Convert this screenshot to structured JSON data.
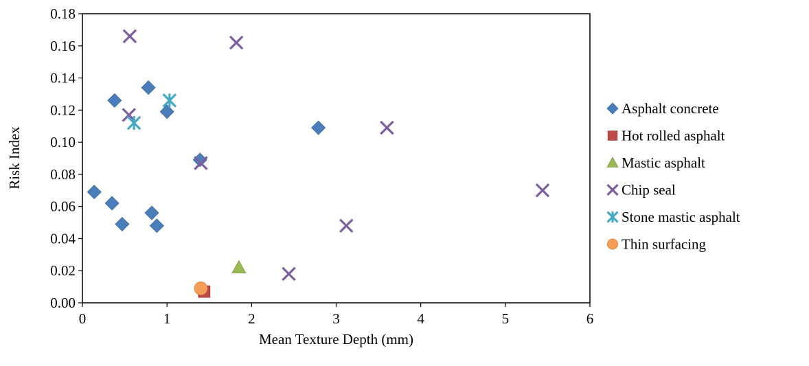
{
  "chart_data": {
    "type": "scatter",
    "title": "",
    "xlabel": "Mean Texture Depth (mm)",
    "ylabel": "Risk Index",
    "xlim": [
      0,
      6
    ],
    "ylim": [
      0,
      0.18
    ],
    "xticks": [
      0,
      1,
      2,
      3,
      4,
      5,
      6
    ],
    "xtick_labels": [
      "0",
      "1",
      "2",
      "3",
      "4",
      "5",
      "6"
    ],
    "yticks": [
      0,
      0.02,
      0.04,
      0.06,
      0.08,
      0.1,
      0.12,
      0.14,
      0.16,
      0.18
    ],
    "ytick_labels": [
      "0.00",
      "0.02",
      "0.04",
      "0.06",
      "0.08",
      "0.10",
      "0.12",
      "0.14",
      "0.16",
      "0.18"
    ],
    "grid": false,
    "legend_position": "right",
    "series": [
      {
        "name": "Asphalt concrete",
        "marker": "diamond",
        "color": "#4a7ebb",
        "points": [
          {
            "x": 0.14,
            "y": 0.069
          },
          {
            "x": 0.35,
            "y": 0.062
          },
          {
            "x": 0.38,
            "y": 0.126
          },
          {
            "x": 0.47,
            "y": 0.049
          },
          {
            "x": 0.78,
            "y": 0.134
          },
          {
            "x": 0.82,
            "y": 0.056
          },
          {
            "x": 0.88,
            "y": 0.048
          },
          {
            "x": 1.0,
            "y": 0.119
          },
          {
            "x": 1.39,
            "y": 0.089
          },
          {
            "x": 2.79,
            "y": 0.109
          }
        ]
      },
      {
        "name": "Hot rolled asphalt",
        "marker": "square",
        "color": "#be4b48",
        "points": [
          {
            "x": 1.44,
            "y": 0.007
          }
        ]
      },
      {
        "name": "Mastic asphalt",
        "marker": "triangle",
        "color": "#98b954",
        "points": [
          {
            "x": 1.85,
            "y": 0.022
          }
        ]
      },
      {
        "name": "Chip seal",
        "marker": "x",
        "color": "#7d5fa0",
        "points": [
          {
            "x": 0.56,
            "y": 0.166
          },
          {
            "x": 0.55,
            "y": 0.117
          },
          {
            "x": 1.4,
            "y": 0.087
          },
          {
            "x": 1.82,
            "y": 0.162
          },
          {
            "x": 2.44,
            "y": 0.018
          },
          {
            "x": 3.12,
            "y": 0.048
          },
          {
            "x": 3.6,
            "y": 0.109
          },
          {
            "x": 5.44,
            "y": 0.07
          }
        ]
      },
      {
        "name": "Stone mastic asphalt",
        "marker": "star",
        "color": "#46aac5",
        "points": [
          {
            "x": 0.61,
            "y": 0.112
          },
          {
            "x": 1.03,
            "y": 0.126
          }
        ]
      },
      {
        "name": "Thin surfacing",
        "marker": "circle",
        "color": "#f59d56",
        "points": [
          {
            "x": 1.4,
            "y": 0.009
          }
        ]
      }
    ]
  }
}
